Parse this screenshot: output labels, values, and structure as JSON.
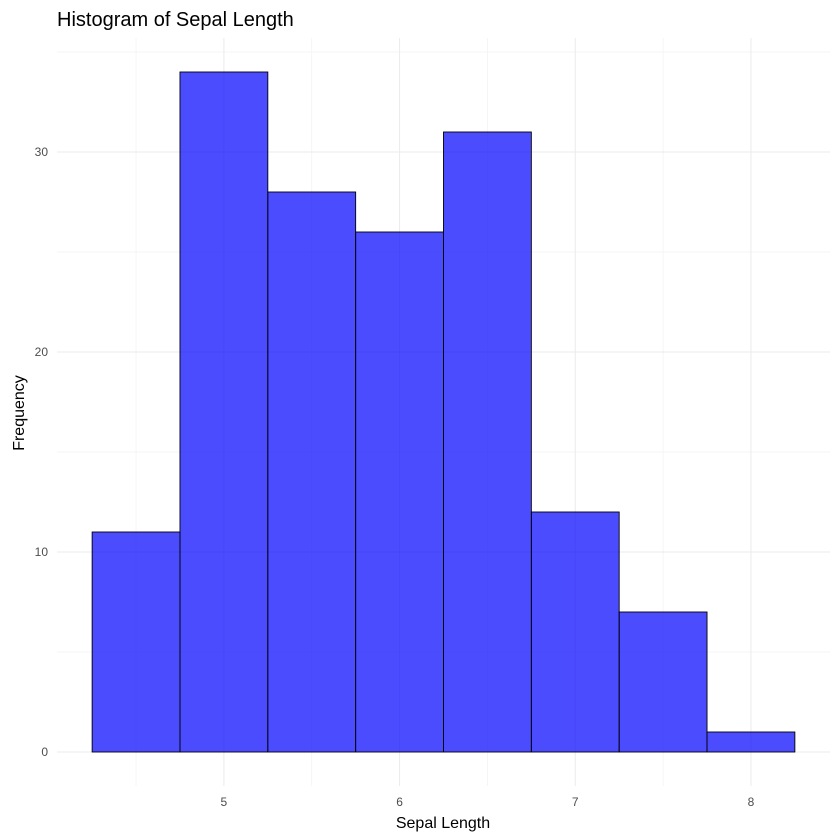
{
  "chart_data": {
    "type": "bar",
    "subtype": "histogram",
    "title": "Histogram of Sepal Length",
    "xlabel": "Sepal Length",
    "ylabel": "Frequency",
    "bins": [
      {
        "start": 4.25,
        "end": 4.75,
        "count": 11
      },
      {
        "start": 4.75,
        "end": 5.25,
        "count": 34
      },
      {
        "start": 5.25,
        "end": 5.75,
        "count": 28
      },
      {
        "start": 5.75,
        "end": 6.25,
        "count": 26
      },
      {
        "start": 6.25,
        "end": 6.75,
        "count": 31
      },
      {
        "start": 6.75,
        "end": 7.25,
        "count": 12
      },
      {
        "start": 7.25,
        "end": 7.75,
        "count": 7
      },
      {
        "start": 7.75,
        "end": 8.25,
        "count": 1
      }
    ],
    "xlim": [
      4.05,
      8.45
    ],
    "ylim": [
      -1.7,
      35.7
    ],
    "x_ticks": [
      5,
      6,
      7,
      8
    ],
    "y_ticks": [
      0,
      10,
      20,
      30
    ],
    "grid": true,
    "bar_fill": "#0000FF",
    "bar_fill_opacity": 0.7,
    "bar_outline": "#000000",
    "background": "#FFFFFF",
    "gridline_color": "#EBEBEB"
  }
}
